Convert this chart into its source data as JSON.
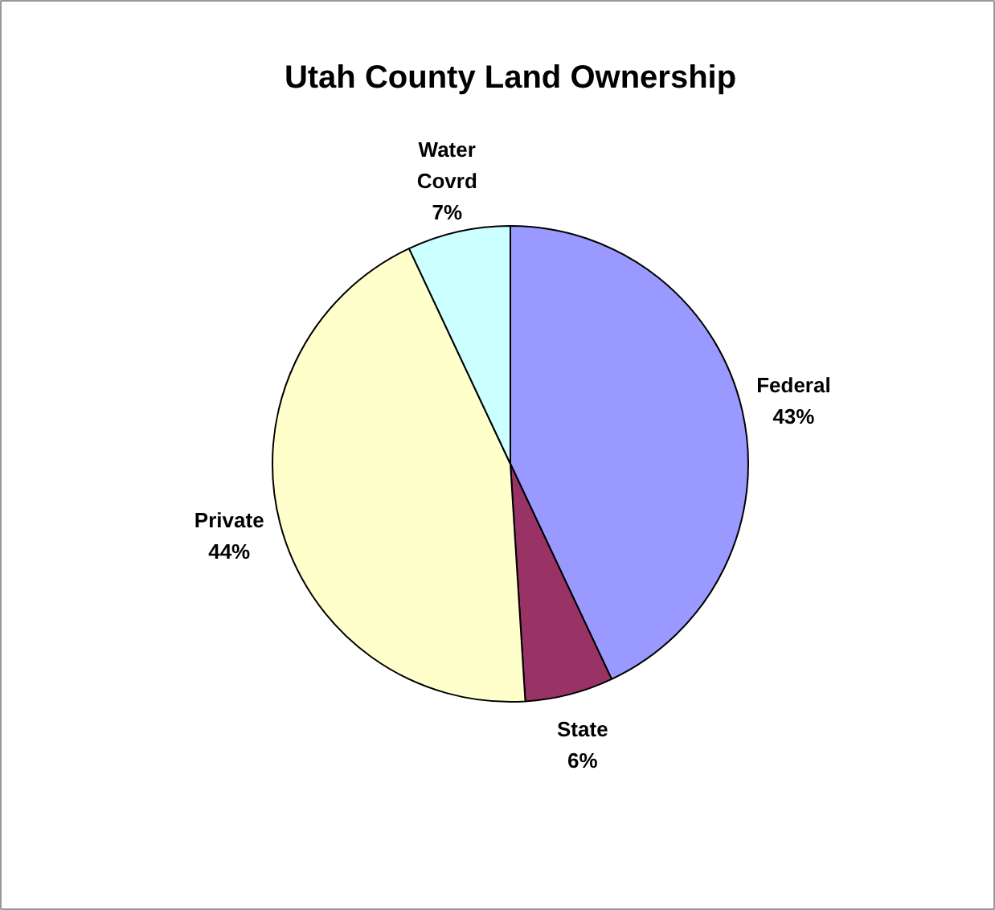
{
  "chart_data": {
    "type": "pie",
    "title": "Utah County Land Ownership",
    "categories": [
      "Federal",
      "State",
      "Private",
      "Water Covrd"
    ],
    "values": [
      43,
      6,
      44,
      7
    ],
    "colors": [
      "#9999ff",
      "#993366",
      "#ffffcc",
      "#ccffff"
    ],
    "value_labels": [
      "43%",
      "6%",
      "44%",
      "7%"
    ]
  }
}
